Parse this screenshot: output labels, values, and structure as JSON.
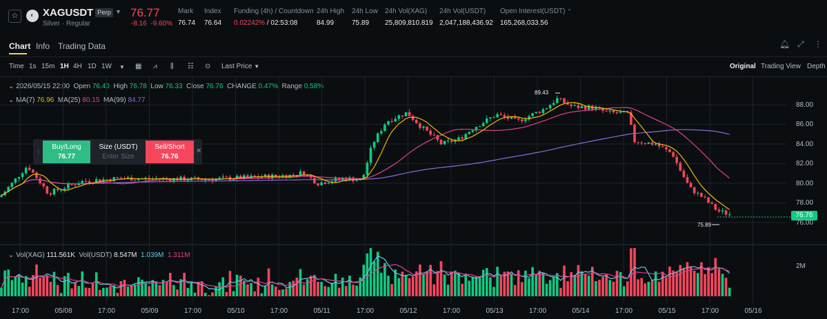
{
  "header": {
    "symbol": "XAGUSDT",
    "badge": "Perp",
    "subtitle": "Silver · Regular",
    "price": "76.77",
    "change": "-8.16",
    "change_pct": "-9.60%",
    "stats": [
      {
        "label": "Mark",
        "value": "76.74"
      },
      {
        "label": "Index",
        "value": "76.64"
      },
      {
        "label": "Funding (4h) / Countdown",
        "value": "0.02242%",
        "extra": "/ 02:53:08"
      },
      {
        "label": "24h High",
        "value": "84.99"
      },
      {
        "label": "24h Low",
        "value": "75.89"
      },
      {
        "label": "24h Vol(XAG)",
        "value": "25,809,810.819"
      },
      {
        "label": "24h Vol(USDT)",
        "value": "2,047,188,436.92"
      },
      {
        "label": "Open Interest(USDT)",
        "value": "165,268,033.56"
      }
    ]
  },
  "tabs": [
    "Chart",
    "Info",
    "Trading Data"
  ],
  "toolbar": {
    "intervals": [
      "Time",
      "1s",
      "15m",
      "1H",
      "4H",
      "1D",
      "1W"
    ],
    "active_interval": "1H",
    "price_type": "Last Price",
    "views": [
      "Original",
      "Trading View",
      "Depth"
    ]
  },
  "ohlc": {
    "date": "2026/05/15 22:00",
    "open_label": "Open",
    "open": "76.40",
    "high_label": "High",
    "high": "76.78",
    "low_label": "Low",
    "low": "76.33",
    "close_label": "Close",
    "close": "76.76",
    "change_label": "CHANGE",
    "change": "0.47%",
    "range_label": "Range",
    "range": "0.58%"
  },
  "ma": {
    "ma7_label": "MA(7)",
    "ma7": "76.96",
    "ma25_label": "MA(25)",
    "ma25": "80.15",
    "ma99_label": "MA(99)",
    "ma99": "84.77"
  },
  "order_panel": {
    "buy_label": "Buy/Long",
    "buy_price": "76.77",
    "size_label": "Size (USDT)",
    "size_placeholder": "Enter Size",
    "sell_label": "Sell/Short",
    "sell_price": "76.76"
  },
  "chart_labels": {
    "high_mark": "89.43",
    "low_mark": "75.89",
    "last_price": "76.76"
  },
  "y_axis": [
    "88.00",
    "86.00",
    "84.00",
    "82.00",
    "80.00",
    "78.00",
    "76.00"
  ],
  "x_axis": [
    "17:00",
    "05/08",
    "17:00",
    "05/09",
    "17:00",
    "05/10",
    "17:00",
    "05/11",
    "17:00",
    "05/12",
    "17:00",
    "05/13",
    "17:00",
    "05/14",
    "17:00",
    "05/15",
    "17:00",
    "05/16"
  ],
  "volume": {
    "xag_label": "Vol(XAG)",
    "xag": "111.561K",
    "usdt_label": "Vol(USDT)",
    "usdt": "8.547M",
    "ma1": "1.039M",
    "ma2": "1.311M",
    "axis_label": "2M"
  },
  "colors": {
    "up": "#0ecb81",
    "down": "#f6465d",
    "ma7": "#f0b90b",
    "ma25": "#e2408f",
    "ma99": "#8b6cd9",
    "vol_ma1": "#63c7e8",
    "vol_ma2": "#e2408f"
  }
}
